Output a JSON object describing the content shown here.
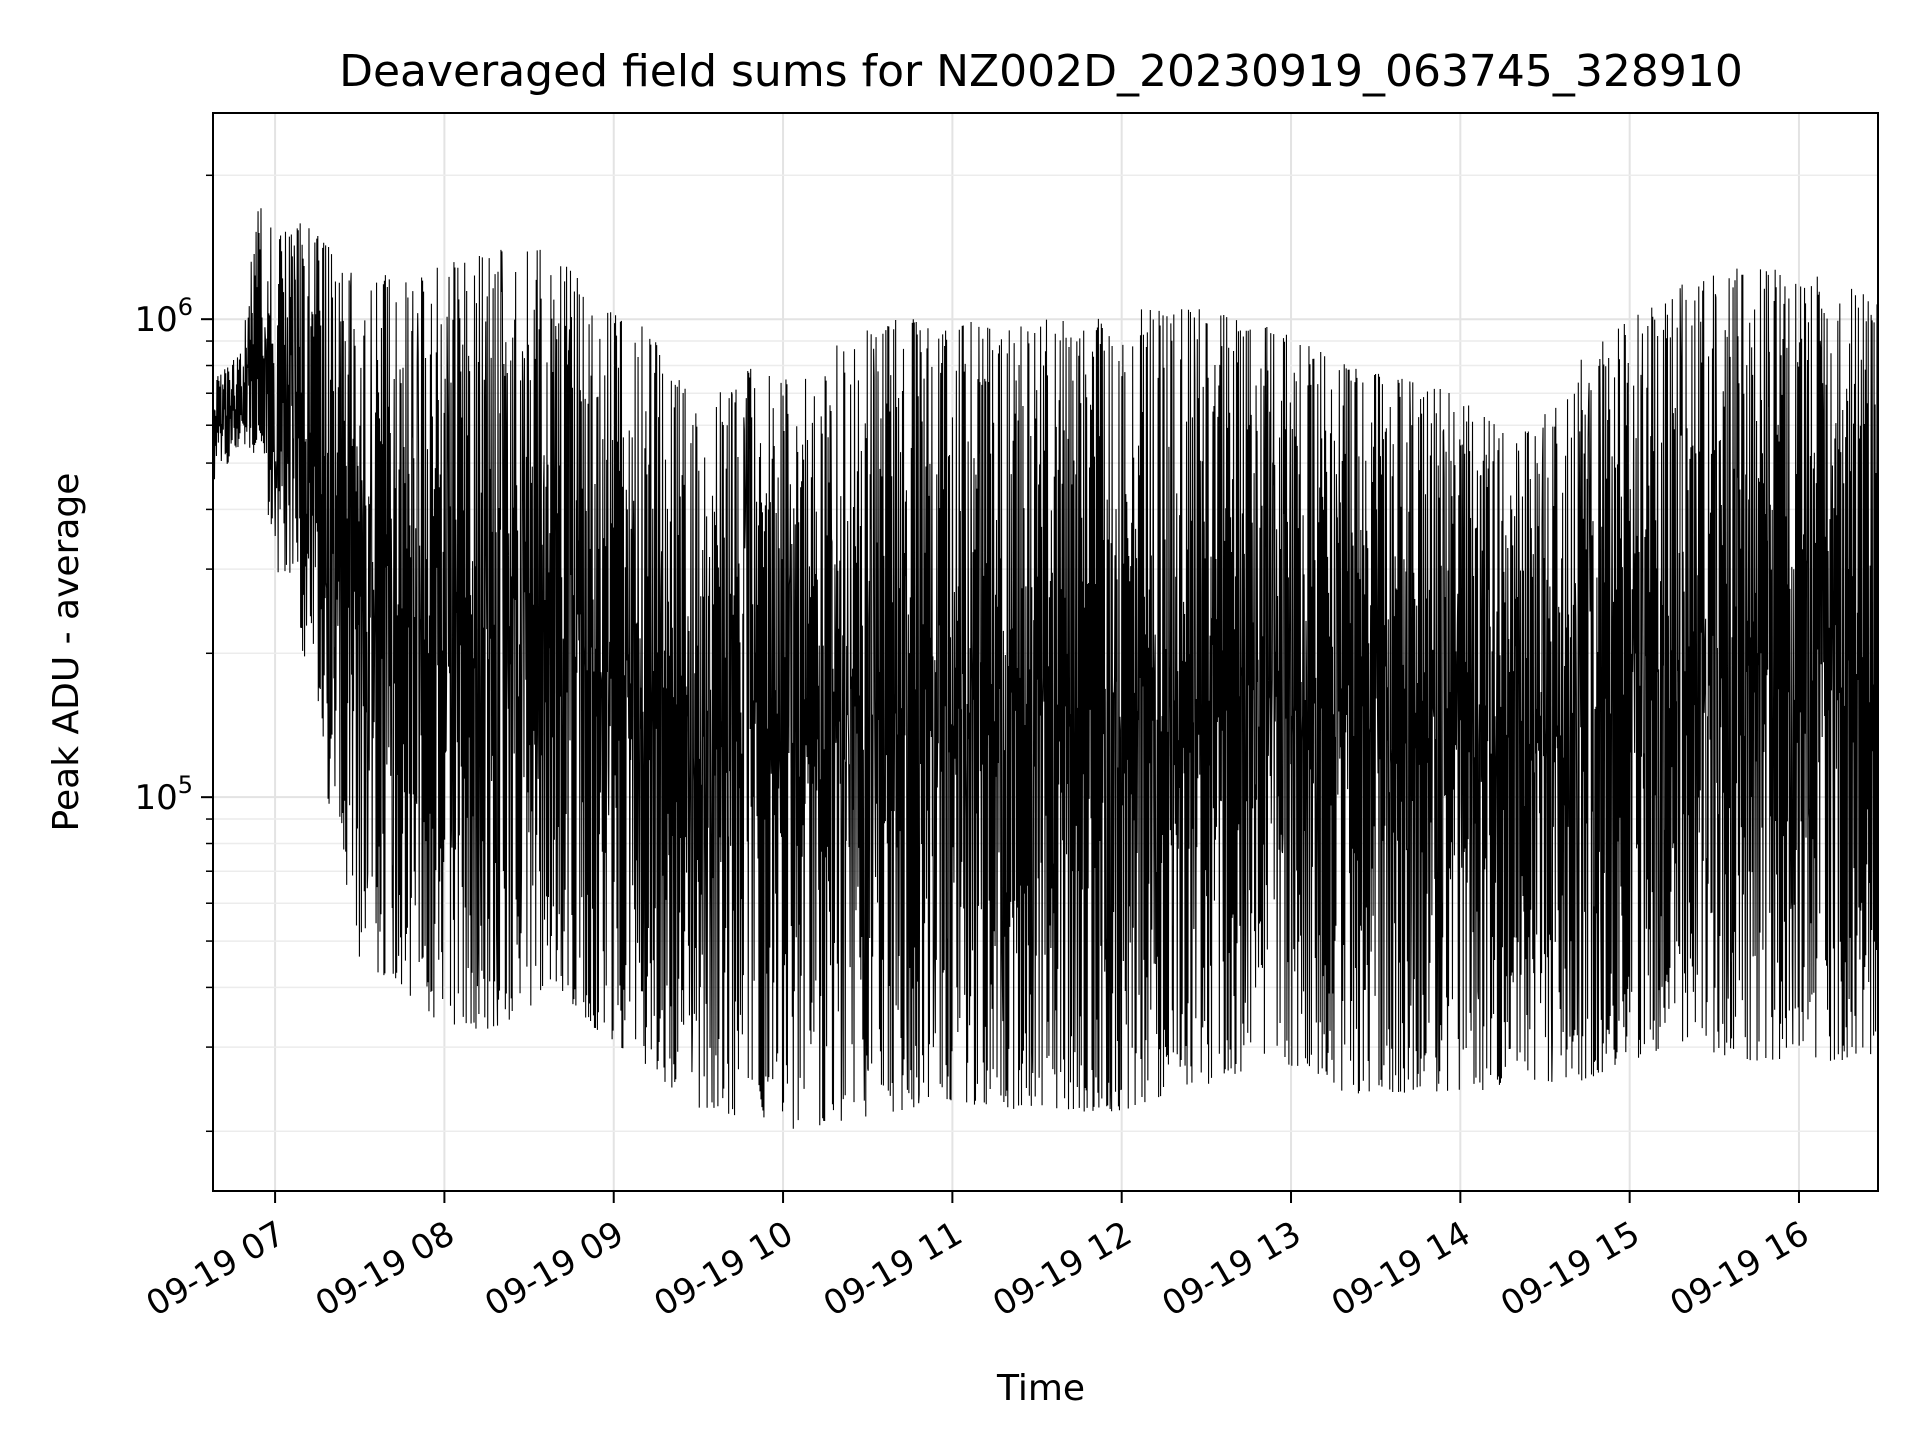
{
  "chart_data": {
    "type": "line",
    "title": "Deaveraged field sums for NZ002D_20230919_063745_328910",
    "xlabel": "Time",
    "ylabel": "Peak ADU - average",
    "yscale": "log",
    "grid": true,
    "legend": "none",
    "xlim": [
      "2023-09-19 06:38",
      "2023-09-19 16:28"
    ],
    "ylim": [
      15000,
      2700000
    ],
    "x_ticks": [
      {
        "label": "09-19 07",
        "time": "2023-09-19 07:00"
      },
      {
        "label": "09-19 08",
        "time": "2023-09-19 08:00"
      },
      {
        "label": "09-19 09",
        "time": "2023-09-19 09:00"
      },
      {
        "label": "09-19 10",
        "time": "2023-09-19 10:00"
      },
      {
        "label": "09-19 11",
        "time": "2023-09-19 11:00"
      },
      {
        "label": "09-19 12",
        "time": "2023-09-19 12:00"
      },
      {
        "label": "09-19 13",
        "time": "2023-09-19 13:00"
      },
      {
        "label": "09-19 14",
        "time": "2023-09-19 14:00"
      },
      {
        "label": "09-19 15",
        "time": "2023-09-19 15:00"
      },
      {
        "label": "09-19 16",
        "time": "2023-09-19 16:00"
      }
    ],
    "y_ticks": [
      {
        "base": "10",
        "exp": "5",
        "value": 100000
      },
      {
        "base": "10",
        "exp": "6",
        "value": 1000000
      }
    ],
    "series": [
      {
        "color": "#000000",
        "envelope": [
          {
            "time": "2023-09-19 06:38",
            "low": 450000,
            "high": 750000
          },
          {
            "time": "2023-09-19 06:48",
            "low": 550000,
            "high": 850000
          },
          {
            "time": "2023-09-19 06:55",
            "low": 500000,
            "high": 2100000
          },
          {
            "time": "2023-09-19 07:00",
            "low": 300000,
            "high": 1500000
          },
          {
            "time": "2023-09-19 07:10",
            "low": 200000,
            "high": 1600000
          },
          {
            "time": "2023-09-19 07:20",
            "low": 90000,
            "high": 1400000
          },
          {
            "time": "2023-09-19 07:30",
            "low": 45000,
            "high": 1300000
          },
          {
            "time": "2023-09-19 07:45",
            "low": 40000,
            "high": 1200000
          },
          {
            "time": "2023-09-19 08:00",
            "low": 32000,
            "high": 1300000
          },
          {
            "time": "2023-09-19 08:20",
            "low": 33000,
            "high": 1400000
          },
          {
            "time": "2023-09-19 08:40",
            "low": 40000,
            "high": 1400000
          },
          {
            "time": "2023-09-19 08:55",
            "low": 32000,
            "high": 1050000
          },
          {
            "time": "2023-09-19 09:10",
            "low": 28000,
            "high": 1000000
          },
          {
            "time": "2023-09-19 09:30",
            "low": 22000,
            "high": 650000
          },
          {
            "time": "2023-09-19 09:50",
            "low": 21000,
            "high": 800000
          },
          {
            "time": "2023-09-19 10:05",
            "low": 20000,
            "high": 750000
          },
          {
            "time": "2023-09-19 10:20",
            "low": 21000,
            "high": 900000
          },
          {
            "time": "2023-09-19 10:40",
            "low": 22000,
            "high": 1000000
          },
          {
            "time": "2023-09-19 11:00",
            "low": 23000,
            "high": 1000000
          },
          {
            "time": "2023-09-19 11:30",
            "low": 22000,
            "high": 1000000
          },
          {
            "time": "2023-09-19 12:00",
            "low": 22000,
            "high": 1050000
          },
          {
            "time": "2023-09-19 12:30",
            "low": 25000,
            "high": 1050000
          },
          {
            "time": "2023-09-19 12:55",
            "low": 28000,
            "high": 950000
          },
          {
            "time": "2023-09-19 13:20",
            "low": 24000,
            "high": 800000
          },
          {
            "time": "2023-09-19 13:40",
            "low": 24000,
            "high": 750000
          },
          {
            "time": "2023-09-19 14:00",
            "low": 24000,
            "high": 700000
          },
          {
            "time": "2023-09-19 14:20",
            "low": 25000,
            "high": 550000
          },
          {
            "time": "2023-09-19 14:40",
            "low": 25000,
            "high": 800000
          },
          {
            "time": "2023-09-19 15:00",
            "low": 28000,
            "high": 1000000
          },
          {
            "time": "2023-09-19 15:20",
            "low": 30000,
            "high": 1200000
          },
          {
            "time": "2023-09-19 15:40",
            "low": 28000,
            "high": 1300000
          },
          {
            "time": "2023-09-19 16:00",
            "low": 28000,
            "high": 1300000
          },
          {
            "time": "2023-09-19 16:28",
            "low": 28000,
            "high": 1100000
          }
        ]
      }
    ]
  }
}
